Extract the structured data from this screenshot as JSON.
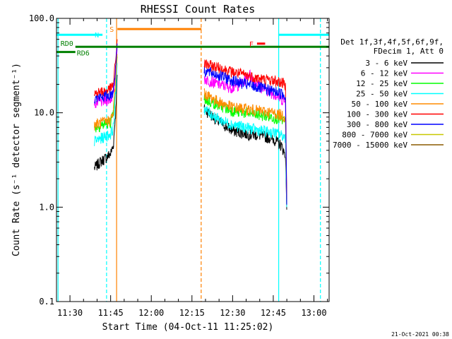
{
  "chart_data": {
    "type": "line",
    "title": "RHESSI Count Rates",
    "xlabel": "Start Time (04-Oct-11 11:25:02)",
    "ylabel": "Count Rate (s⁻¹ detector segment⁻¹)",
    "yscale": "log",
    "ylim": [
      0.1,
      100
    ],
    "xlim_minutes": [
      25.03,
      125.6
    ],
    "x_unit": "minutes after 11:00 UT",
    "x_ticks": [
      {
        "t": 30,
        "label": "11:30"
      },
      {
        "t": 45,
        "label": "11:45"
      },
      {
        "t": 60,
        "label": "12:00"
      },
      {
        "t": 75,
        "label": "12:15"
      },
      {
        "t": 90,
        "label": "12:30"
      },
      {
        "t": 105,
        "label": "12:45"
      },
      {
        "t": 120,
        "label": "13:00"
      }
    ],
    "y_ticks": [
      {
        "v": 100,
        "label": "100.0"
      },
      {
        "v": 10,
        "label": "10.0"
      },
      {
        "v": 1,
        "label": "1.0"
      },
      {
        "v": 0.1,
        "label": "0.1"
      }
    ],
    "grid": false,
    "legend": {
      "placement": "right",
      "header": [
        "Det 1f,3f,4f,5f,6f,9f,",
        "FDecim 1, Att 0"
      ]
    },
    "series": [
      {
        "name": "3 - 6 keV",
        "color": "#000000",
        "segments": [
          {
            "t": [
              39,
              41,
              43,
              45,
              46,
              47,
              47.5
            ],
            "y": [
              2.6,
              3.0,
              3.3,
              3.7,
              4.5,
              12,
              30
            ]
          },
          {
            "t": [
              79.5,
              85,
              90,
              95,
              100,
              105,
              108,
              109.5,
              110
            ],
            "y": [
              11,
              8,
              6.5,
              6,
              5.8,
              5.3,
              4.5,
              3.5,
              0.9
            ]
          }
        ]
      },
      {
        "name": "6 - 12 keV",
        "color": "#ff00ff",
        "segments": [
          {
            "t": [
              39,
              41,
              43,
              45,
              46,
              47,
              47.5
            ],
            "y": [
              12.5,
              13,
              13.5,
              14,
              16,
              30,
              55
            ]
          },
          {
            "t": [
              79.5,
              85,
              90,
              94,
              96,
              100,
              105,
              108,
              109.5,
              110
            ],
            "y": [
              23,
              20,
              18.5,
              21,
              26,
              19,
              16,
              14,
              13,
              1.0
            ]
          }
        ]
      },
      {
        "name": "12 - 25 keV",
        "color": "#00ff00",
        "segments": [
          {
            "t": [
              39,
              41,
              43,
              45,
              46,
              47,
              47.5
            ],
            "y": [
              7,
              7.3,
              7.6,
              8,
              9.5,
              22,
              45
            ]
          },
          {
            "t": [
              79.5,
              85,
              90,
              95,
              100,
              105,
              108,
              109.5,
              110
            ],
            "y": [
              14,
              12,
              10.5,
              10,
              9.5,
              9,
              8.5,
              8,
              1.0
            ]
          }
        ]
      },
      {
        "name": "25 - 50 keV",
        "color": "#00ffff",
        "segments": [
          {
            "t": [
              39,
              41,
              43,
              45,
              46,
              47,
              47.5
            ],
            "y": [
              5,
              5.3,
              5.6,
              6,
              7,
              18,
              40
            ]
          },
          {
            "t": [
              79.5,
              85,
              90,
              95,
              100,
              105,
              108,
              109.5,
              110
            ],
            "y": [
              11,
              8.5,
              7.5,
              7,
              6.5,
              6.2,
              5.8,
              5.5,
              0.9
            ]
          }
        ]
      },
      {
        "name": "50 - 100 keV",
        "color": "#ff8c00",
        "segments": [
          {
            "t": [
              39,
              41,
              43,
              45,
              46,
              47,
              47.5
            ],
            "y": [
              7.5,
              7.8,
              8,
              8.5,
              10,
              25,
              50
            ]
          },
          {
            "t": [
              79.5,
              85,
              90,
              95,
              100,
              105,
              108,
              109.5,
              110
            ],
            "y": [
              16,
              13,
              11.5,
              11,
              10.5,
              10,
              9.5,
              9,
              1.0
            ]
          }
        ]
      },
      {
        "name": "100 - 300 keV",
        "color": "#ff0000",
        "segments": [
          {
            "t": [
              39,
              41,
              43,
              45,
              46,
              47,
              47.5
            ],
            "y": [
              16,
              16.5,
              17,
              18,
              20,
              40,
              65
            ]
          },
          {
            "t": [
              79.5,
              85,
              90,
              95,
              100,
              105,
              108,
              109.5,
              110
            ],
            "y": [
              33,
              30,
              27,
              25,
              23,
              22,
              21,
              20,
              1.1
            ]
          }
        ]
      },
      {
        "name": "300 - 800 keV",
        "color": "#0000ff",
        "segments": [
          {
            "t": [
              39,
              41,
              43,
              45,
              46,
              47,
              47.5
            ],
            "y": [
              14,
              14.5,
              15,
              15.5,
              17,
              35,
              60
            ]
          },
          {
            "t": [
              79.5,
              85,
              90,
              95,
              100,
              105,
              108,
              109.5,
              110
            ],
            "y": [
              28,
              25,
              22,
              20,
              18.5,
              17,
              16,
              15,
              1.0
            ]
          }
        ]
      },
      {
        "name": "800 - 7000 keV",
        "color": "#c8c800",
        "segments": []
      },
      {
        "name": "7000 - 15000 keV",
        "color": "#8b5a00",
        "segments": []
      }
    ],
    "annotations": {
      "attenuator_bars": [
        {
          "label": "RD0",
          "color": "#008000",
          "t0": 32,
          "t1": 125.6,
          "y": 50
        },
        {
          "label": "RD6",
          "color": "#008000",
          "t0": 25.03,
          "t1": 32,
          "y": 44
        }
      ],
      "mode_bars": [
        {
          "label": "N",
          "color": "#00ffff",
          "t0": 25.03,
          "t1": 42,
          "y": 67
        },
        {
          "label": "N",
          "color": "#00ffff",
          "t0": 107,
          "t1": 125.6,
          "y": 67
        },
        {
          "label": "S",
          "color": "#ff8000",
          "t0": 47.5,
          "t1": 78.5,
          "y": 77
        },
        {
          "label": "F",
          "color": "#ff0000",
          "t0": 99,
          "t1": 102,
          "y": 54
        }
      ],
      "vlines": [
        {
          "t": 25.6,
          "color": "#00ffff",
          "dashed": false
        },
        {
          "t": 43.5,
          "color": "#00ffff",
          "dashed": true
        },
        {
          "t": 47.2,
          "color": "#ff8000",
          "dashed": false
        },
        {
          "t": 78.4,
          "color": "#ff8000",
          "dashed": true
        },
        {
          "t": 107,
          "color": "#00ffff",
          "dashed": false
        },
        {
          "t": 122.4,
          "color": "#00ffff",
          "dashed": true
        }
      ]
    }
  },
  "footer": {
    "timestamp": "21-Oct-2021 00:38"
  }
}
